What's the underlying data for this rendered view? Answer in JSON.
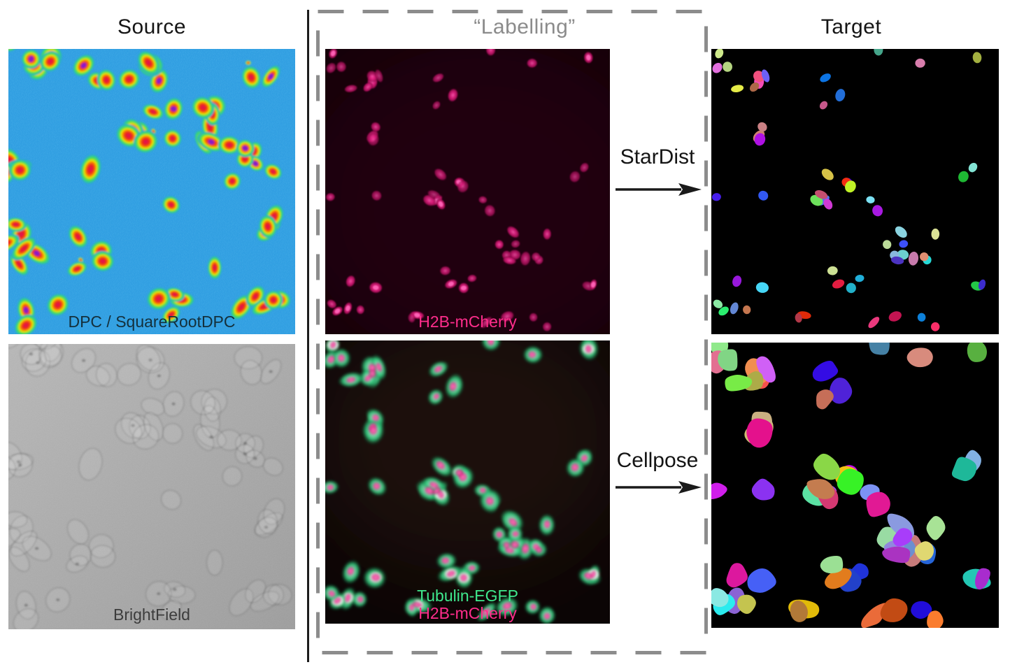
{
  "columns": {
    "source": {
      "title": "Source"
    },
    "labelling": {
      "title": "“Labelling”"
    },
    "target": {
      "title": "Target"
    }
  },
  "arrows": {
    "stardist": {
      "label": "StarDist"
    },
    "cellpose": {
      "label": "Cellpose"
    }
  },
  "panels": {
    "dpc": {
      "label": "DPC / SquareRootDPC",
      "label_color": "#14303c"
    },
    "brightfield": {
      "label": "BrightField",
      "label_color": "#3c3c3c"
    },
    "h2b": {
      "label": "H2B-mCherry",
      "label_color": "#ff2d8c"
    },
    "tubulin": {
      "lines": [
        {
          "text": "Tubulin-EGFP",
          "color": "#3fe98d"
        },
        {
          "text": "H2B-mCherry",
          "color": "#ff2d8c"
        }
      ]
    },
    "stardist_mask": {
      "description": "instance segmentation of nuclei, colored labels on black"
    },
    "cellpose_mask": {
      "description": "instance segmentation of cells, colored labels on black"
    }
  },
  "style": {
    "divider_color": "#1c1c1c",
    "dashed_border_color": "#8c8c8c",
    "title_color": "#151515",
    "labelling_title_color": "#8b8b8b",
    "arrow_color": "#1a1a1a",
    "dpc_background": "#2d9ce1",
    "brightfield_background": "#ababab",
    "h2b_background": "#150009",
    "tubulin_background": "#0b0505",
    "mask_background": "#000000"
  },
  "render": {
    "dpc_gradient": [
      [
        "0%",
        "#dc1060"
      ],
      [
        "28%",
        "#ee2418"
      ],
      [
        "46%",
        "#f57f00"
      ],
      [
        "58%",
        "#f0e800"
      ],
      [
        "72%",
        "#52df3a"
      ],
      [
        "85%",
        "#2ecf8f"
      ],
      [
        "100%",
        "#2b9cdf"
      ]
    ],
    "h2b_gradient": [
      [
        "0%",
        "#ff5cb0"
      ],
      [
        "35%",
        "#ea2488"
      ],
      [
        "75%",
        "#a90f58"
      ],
      [
        "100%",
        "#5f0730"
      ]
    ],
    "tubulin_cell_gradient": [
      [
        "0%",
        "#e9fff1"
      ],
      [
        "30%",
        "#86efbb"
      ],
      [
        "62%",
        "#2fca7c"
      ],
      [
        "100%",
        "#0c5c34"
      ]
    ],
    "tubulin_nucleus_gradient": [
      [
        "0%",
        "#ff86c6"
      ],
      [
        "50%",
        "#ee3494"
      ],
      [
        "100%",
        "#8d1454"
      ]
    ],
    "purple_core_color": "#7d1fd6",
    "fields": {
      "source": {
        "seed": 11,
        "clusters": [
          [
            0.1,
            0.06,
            8,
            0.1
          ],
          [
            0.3,
            0.1,
            3,
            0.05
          ],
          [
            0.47,
            0.1,
            4,
            0.06
          ],
          [
            0.88,
            0.09,
            3,
            0.05
          ],
          [
            0.47,
            0.26,
            6,
            0.07
          ],
          [
            0.64,
            0.26,
            8,
            0.08
          ],
          [
            0.01,
            0.42,
            4,
            0.05
          ],
          [
            0.85,
            0.41,
            7,
            0.08
          ],
          [
            0.05,
            0.68,
            6,
            0.08
          ],
          [
            0.3,
            0.72,
            5,
            0.07
          ],
          [
            0.93,
            0.63,
            4,
            0.06
          ],
          [
            0.55,
            0.92,
            4,
            0.06
          ],
          [
            0.88,
            0.92,
            5,
            0.07
          ],
          [
            0.12,
            0.94,
            3,
            0.06
          ],
          [
            0.57,
            0.55,
            1,
            0.02
          ],
          [
            0.3,
            0.44,
            1,
            0.02
          ],
          [
            0.72,
            0.75,
            1,
            0.02
          ]
        ]
      },
      "specimen": {
        "seed": 23,
        "clusters": [
          [
            0.06,
            0.05,
            3,
            0.04
          ],
          [
            0.14,
            0.13,
            5,
            0.06
          ],
          [
            0.2,
            0.28,
            3,
            0.04
          ],
          [
            0.42,
            0.15,
            3,
            0.05
          ],
          [
            0.58,
            0.02,
            1,
            0.02
          ],
          [
            0.73,
            0.05,
            1,
            0.02
          ],
          [
            0.93,
            0.04,
            1,
            0.02
          ],
          [
            0.42,
            0.5,
            8,
            0.07
          ],
          [
            0.56,
            0.54,
            2,
            0.03
          ],
          [
            0.7,
            0.72,
            10,
            0.09
          ],
          [
            0.01,
            0.5,
            1,
            0.02
          ],
          [
            0.17,
            0.52,
            1,
            0.02
          ],
          [
            0.1,
            0.85,
            6,
            0.08
          ],
          [
            0.47,
            0.8,
            4,
            0.05
          ],
          [
            0.33,
            0.93,
            2,
            0.04
          ],
          [
            0.6,
            0.95,
            2,
            0.04
          ],
          [
            0.9,
            0.42,
            2,
            0.03
          ],
          [
            0.93,
            0.82,
            2,
            0.03
          ],
          [
            0.76,
            0.95,
            2,
            0.03
          ]
        ]
      }
    }
  }
}
